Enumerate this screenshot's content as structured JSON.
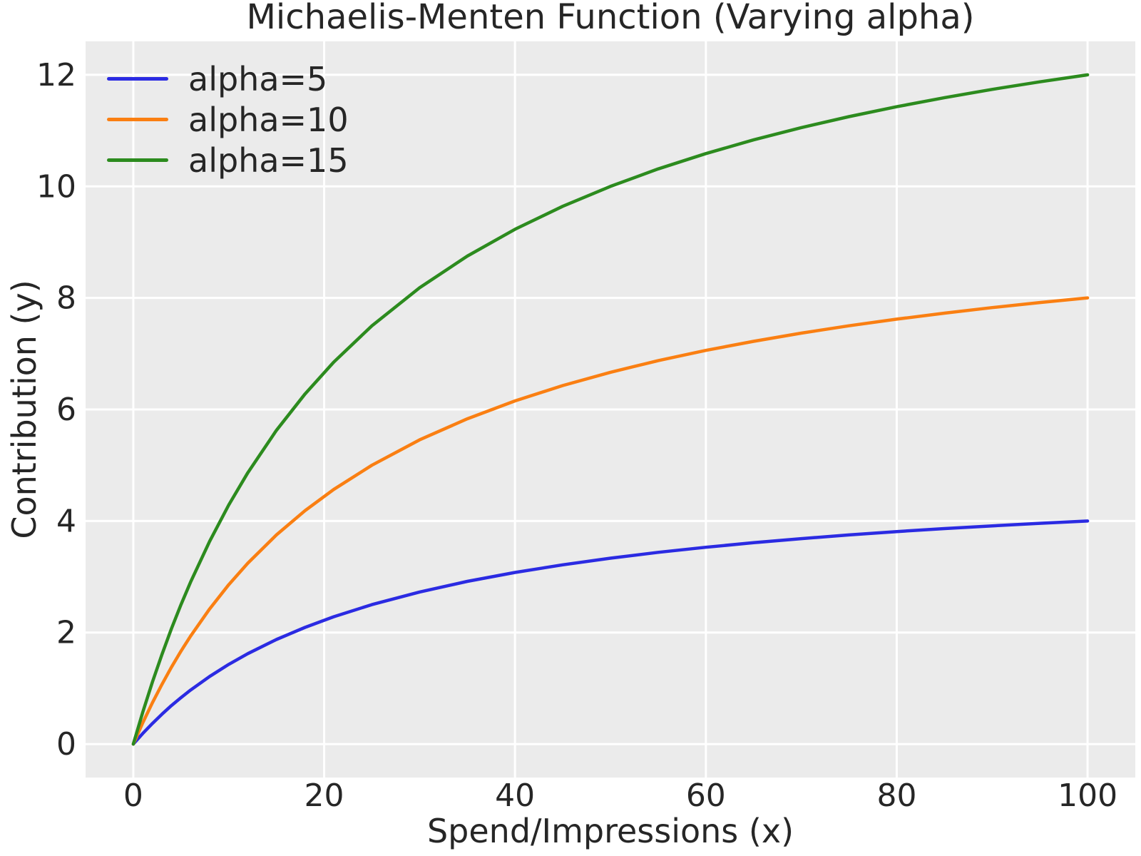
{
  "chart_data": {
    "type": "line",
    "title": "Michaelis-Menten Function (Varying alpha)",
    "xlabel": "Spend/Impressions (x)",
    "ylabel": "Contribution (y)",
    "xlim": [
      -5,
      105
    ],
    "ylim": [
      -0.6,
      12.6
    ],
    "xticks": [
      0,
      20,
      40,
      60,
      80,
      100
    ],
    "yticks": [
      0,
      2,
      4,
      6,
      8,
      10,
      12
    ],
    "grid": true,
    "legend_position": "upper-left",
    "colors": {
      "figure_background": "#ffffff",
      "plot_background": "#ebebeb",
      "grid": "#ffffff",
      "text": "#262626"
    },
    "x": [
      0,
      1,
      2,
      3,
      4,
      5,
      6,
      8,
      10,
      12,
      15,
      18,
      21,
      25,
      30,
      35,
      40,
      45,
      50,
      55,
      60,
      65,
      70,
      75,
      80,
      85,
      90,
      95,
      100
    ],
    "series": [
      {
        "name": "alpha=5",
        "color": "#2b2be2",
        "values": [
          0,
          0.192,
          0.37,
          0.536,
          0.69,
          0.833,
          0.968,
          1.212,
          1.429,
          1.622,
          1.875,
          2.093,
          2.283,
          2.5,
          2.727,
          2.917,
          3.077,
          3.214,
          3.333,
          3.438,
          3.529,
          3.611,
          3.684,
          3.75,
          3.81,
          3.864,
          3.913,
          3.958,
          4.0
        ]
      },
      {
        "name": "alpha=10",
        "color": "#fa7f12",
        "values": [
          0,
          0.385,
          0.741,
          1.071,
          1.379,
          1.667,
          1.935,
          2.424,
          2.857,
          3.243,
          3.75,
          4.186,
          4.565,
          5.0,
          5.455,
          5.833,
          6.154,
          6.429,
          6.667,
          6.875,
          7.059,
          7.222,
          7.368,
          7.5,
          7.619,
          7.727,
          7.826,
          7.917,
          8.0
        ]
      },
      {
        "name": "alpha=15",
        "color": "#2c8b1e",
        "values": [
          0,
          0.577,
          1.111,
          1.607,
          2.069,
          2.5,
          2.903,
          3.636,
          4.286,
          4.865,
          5.625,
          6.279,
          6.848,
          7.5,
          8.182,
          8.75,
          9.231,
          9.643,
          10.0,
          10.313,
          10.588,
          10.833,
          11.053,
          11.25,
          11.429,
          11.591,
          11.739,
          11.875,
          12.0
        ]
      }
    ]
  }
}
